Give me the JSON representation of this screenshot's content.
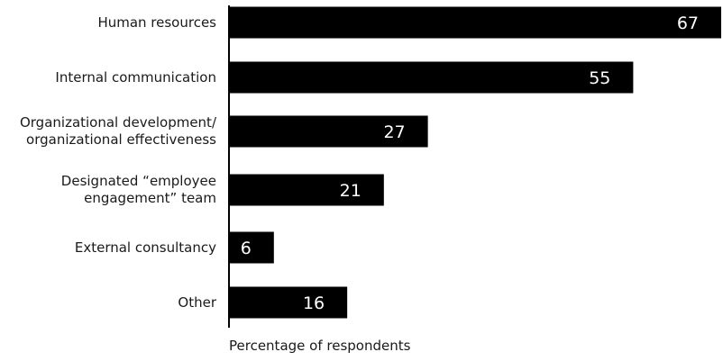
{
  "chart_data": {
    "type": "bar",
    "orientation": "horizontal",
    "categories": [
      "Human resources",
      "Internal communication",
      "Organizational development/\norganizational effectiveness",
      "Designated “employee\nengagement” team",
      "External consultancy",
      "Other"
    ],
    "values": [
      67,
      55,
      27,
      21,
      6,
      16
    ],
    "xlabel": "Percentage of respondents",
    "ylabel": "",
    "title": "",
    "xlim": [
      0,
      67
    ],
    "grid": false,
    "legend": "none",
    "bar_color": "#000000",
    "data_label_color": "#ffffff"
  }
}
